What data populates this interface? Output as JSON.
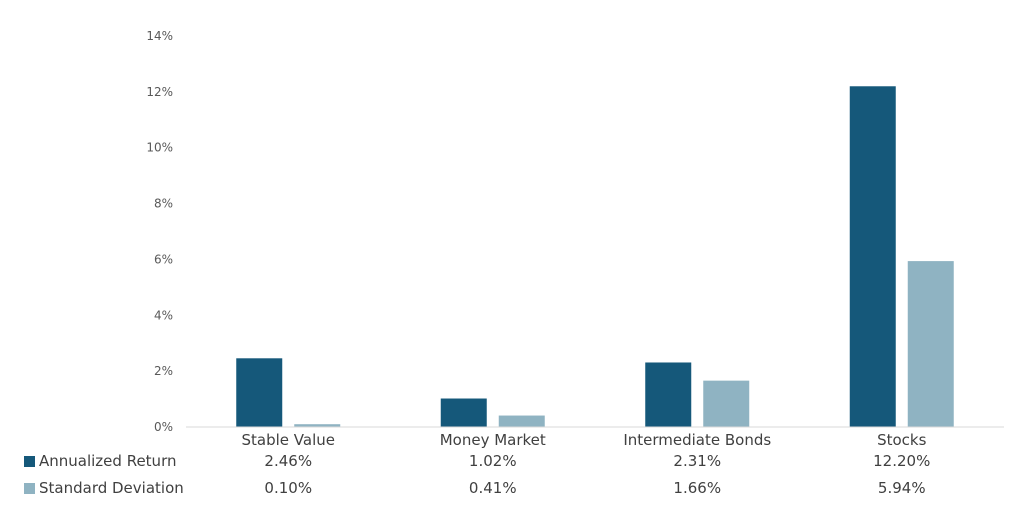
{
  "chart_data": {
    "type": "bar",
    "categories": [
      "Stable Value",
      "Money Market",
      "Intermediate Bonds",
      "Stocks"
    ],
    "series": [
      {
        "name": "Annualized Return",
        "color": "#15587a",
        "values": [
          2.46,
          1.02,
          2.31,
          12.2
        ],
        "labels": [
          "2.46%",
          "1.02%",
          "2.31%",
          "12.20%"
        ]
      },
      {
        "name": "Standard Deviation",
        "color": "#8fb3c2",
        "values": [
          0.1,
          0.41,
          1.66,
          5.94
        ],
        "labels": [
          "0.10%",
          "0.41%",
          "1.66%",
          "5.94%"
        ]
      }
    ],
    "y_ticks": [
      "0%",
      "2%",
      "4%",
      "6%",
      "8%",
      "10%",
      "12%",
      "14%"
    ],
    "ylim": [
      0,
      14
    ],
    "grid": false,
    "legend": "bottom data table"
  }
}
